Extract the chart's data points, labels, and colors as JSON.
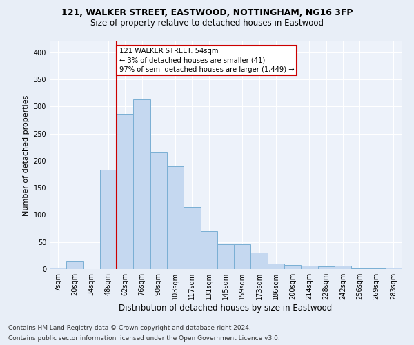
{
  "title1": "121, WALKER STREET, EASTWOOD, NOTTINGHAM, NG16 3FP",
  "title2": "Size of property relative to detached houses in Eastwood",
  "xlabel": "Distribution of detached houses by size in Eastwood",
  "ylabel": "Number of detached properties",
  "categories": [
    "7sqm",
    "20sqm",
    "34sqm",
    "48sqm",
    "62sqm",
    "76sqm",
    "90sqm",
    "103sqm",
    "117sqm",
    "131sqm",
    "145sqm",
    "159sqm",
    "173sqm",
    "186sqm",
    "200sqm",
    "214sqm",
    "228sqm",
    "242sqm",
    "256sqm",
    "269sqm",
    "283sqm"
  ],
  "values": [
    2,
    15,
    0,
    183,
    286,
    313,
    215,
    190,
    115,
    70,
    46,
    46,
    31,
    10,
    8,
    6,
    5,
    6,
    1,
    1,
    2
  ],
  "bar_color": "#c5d8f0",
  "bar_edge_color": "#7aafd4",
  "annotation_text": "121 WALKER STREET: 54sqm\n← 3% of detached houses are smaller (41)\n97% of semi-detached houses are larger (1,449) →",
  "annotation_box_color": "#ffffff",
  "annotation_box_edge": "#cc0000",
  "line_color": "#cc0000",
  "footnote1": "Contains HM Land Registry data © Crown copyright and database right 2024.",
  "footnote2": "Contains public sector information licensed under the Open Government Licence v3.0.",
  "ylim": [
    0,
    420
  ],
  "bg_color": "#e8eef7",
  "plot_bg_color": "#edf2fa",
  "title_fontsize": 9,
  "subtitle_fontsize": 8.5,
  "ylabel_fontsize": 8,
  "xlabel_fontsize": 8.5,
  "tick_fontsize": 7,
  "footnote_fontsize": 6.5
}
